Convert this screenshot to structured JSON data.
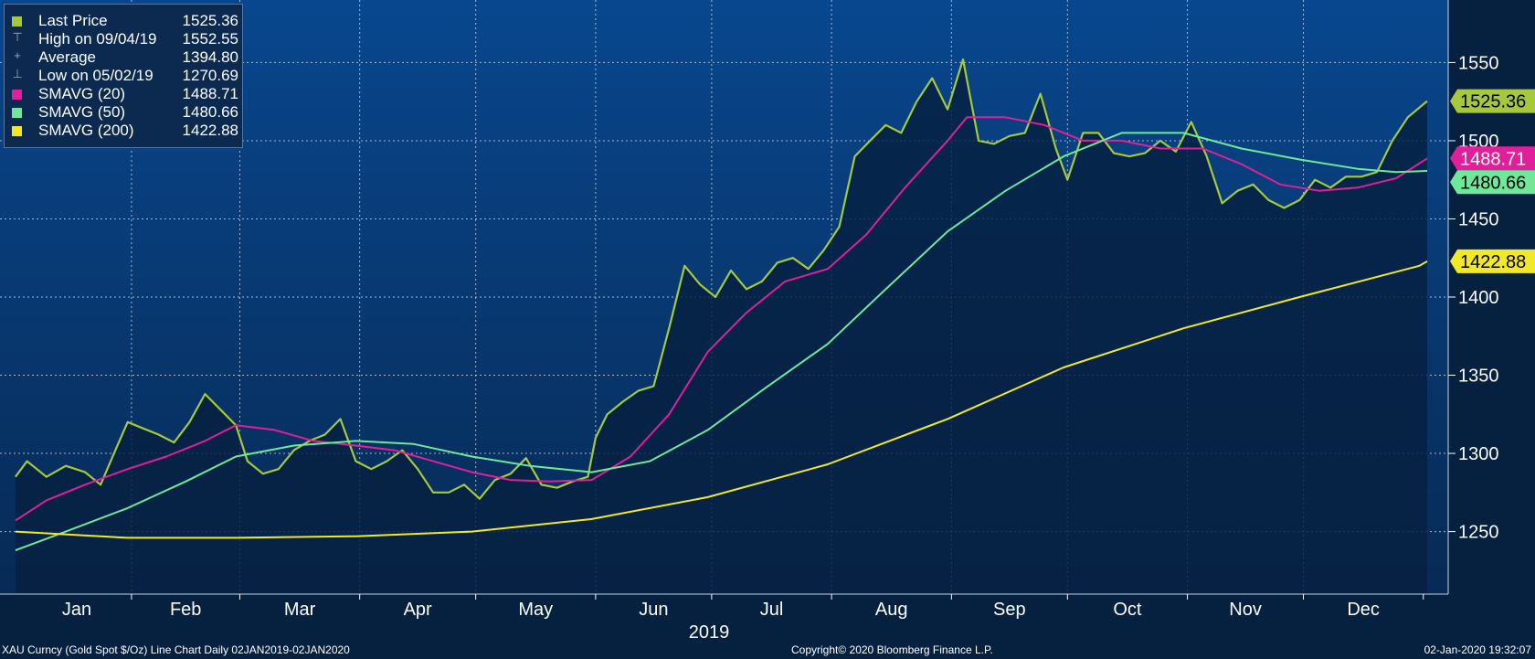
{
  "chart_data": {
    "type": "line",
    "title": "",
    "xlabel": "2019",
    "ylabel": "",
    "x_months": [
      "Jan",
      "Feb",
      "Mar",
      "Apr",
      "May",
      "Jun",
      "Jul",
      "Aug",
      "Sep",
      "Oct",
      "Nov",
      "Dec"
    ],
    "ylim": [
      1210,
      1590
    ],
    "y_ticks": [
      1250,
      1300,
      1350,
      1400,
      1450,
      1500,
      1550
    ],
    "grid": true,
    "legend_position": "top-left",
    "series": [
      {
        "name": "Last Price",
        "style": "area",
        "color": "#a6c83c",
        "points": [
          [
            "2019-01-02",
            1285
          ],
          [
            "2019-01-05",
            1295
          ],
          [
            "2019-01-10",
            1285
          ],
          [
            "2019-01-15",
            1292
          ],
          [
            "2019-01-20",
            1288
          ],
          [
            "2019-01-24",
            1280
          ],
          [
            "2019-01-28",
            1303
          ],
          [
            "2019-01-31",
            1320
          ],
          [
            "2019-02-04",
            1316
          ],
          [
            "2019-02-08",
            1312
          ],
          [
            "2019-02-12",
            1307
          ],
          [
            "2019-02-16",
            1320
          ],
          [
            "2019-02-20",
            1338
          ],
          [
            "2019-02-24",
            1328
          ],
          [
            "2019-02-28",
            1318
          ],
          [
            "2019-03-03",
            1295
          ],
          [
            "2019-03-07",
            1287
          ],
          [
            "2019-03-11",
            1290
          ],
          [
            "2019-03-15",
            1302
          ],
          [
            "2019-03-19",
            1308
          ],
          [
            "2019-03-23",
            1312
          ],
          [
            "2019-03-27",
            1322
          ],
          [
            "2019-03-31",
            1295
          ],
          [
            "2019-04-04",
            1290
          ],
          [
            "2019-04-08",
            1295
          ],
          [
            "2019-04-12",
            1302
          ],
          [
            "2019-04-16",
            1290
          ],
          [
            "2019-04-20",
            1275
          ],
          [
            "2019-04-24",
            1275
          ],
          [
            "2019-04-28",
            1280
          ],
          [
            "2019-05-02",
            1271
          ],
          [
            "2019-05-06",
            1283
          ],
          [
            "2019-05-10",
            1287
          ],
          [
            "2019-05-14",
            1297
          ],
          [
            "2019-05-18",
            1280
          ],
          [
            "2019-05-22",
            1278
          ],
          [
            "2019-05-26",
            1282
          ],
          [
            "2019-05-30",
            1285
          ],
          [
            "2019-06-01",
            1310
          ],
          [
            "2019-06-04",
            1325
          ],
          [
            "2019-06-08",
            1333
          ],
          [
            "2019-06-12",
            1340
          ],
          [
            "2019-06-16",
            1343
          ],
          [
            "2019-06-20",
            1380
          ],
          [
            "2019-06-24",
            1420
          ],
          [
            "2019-06-28",
            1408
          ],
          [
            "2019-07-02",
            1400
          ],
          [
            "2019-07-06",
            1417
          ],
          [
            "2019-07-10",
            1405
          ],
          [
            "2019-07-14",
            1410
          ],
          [
            "2019-07-18",
            1422
          ],
          [
            "2019-07-22",
            1425
          ],
          [
            "2019-07-26",
            1418
          ],
          [
            "2019-07-30",
            1430
          ],
          [
            "2019-08-03",
            1445
          ],
          [
            "2019-08-07",
            1490
          ],
          [
            "2019-08-11",
            1500
          ],
          [
            "2019-08-15",
            1510
          ],
          [
            "2019-08-19",
            1505
          ],
          [
            "2019-08-23",
            1525
          ],
          [
            "2019-08-27",
            1540
          ],
          [
            "2019-08-31",
            1520
          ],
          [
            "2019-09-04",
            1552
          ],
          [
            "2019-09-08",
            1500
          ],
          [
            "2019-09-12",
            1498
          ],
          [
            "2019-09-16",
            1503
          ],
          [
            "2019-09-20",
            1505
          ],
          [
            "2019-09-24",
            1530
          ],
          [
            "2019-09-28",
            1495
          ],
          [
            "2019-10-01",
            1475
          ],
          [
            "2019-10-05",
            1505
          ],
          [
            "2019-10-09",
            1505
          ],
          [
            "2019-10-13",
            1492
          ],
          [
            "2019-10-17",
            1490
          ],
          [
            "2019-10-21",
            1492
          ],
          [
            "2019-10-25",
            1500
          ],
          [
            "2019-10-29",
            1493
          ],
          [
            "2019-11-02",
            1512
          ],
          [
            "2019-11-06",
            1490
          ],
          [
            "2019-11-10",
            1460
          ],
          [
            "2019-11-14",
            1468
          ],
          [
            "2019-11-18",
            1472
          ],
          [
            "2019-11-22",
            1462
          ],
          [
            "2019-11-26",
            1457
          ],
          [
            "2019-11-30",
            1462
          ],
          [
            "2019-12-04",
            1475
          ],
          [
            "2019-12-08",
            1470
          ],
          [
            "2019-12-12",
            1477
          ],
          [
            "2019-12-16",
            1477
          ],
          [
            "2019-12-20",
            1480
          ],
          [
            "2019-12-24",
            1500
          ],
          [
            "2019-12-28",
            1515
          ],
          [
            "2020-01-02",
            1525.36
          ]
        ]
      },
      {
        "name": "SMAVG (20)",
        "style": "line",
        "color": "#e0209a",
        "points": [
          [
            "2019-01-02",
            1257
          ],
          [
            "2019-01-10",
            1270
          ],
          [
            "2019-01-20",
            1280
          ],
          [
            "2019-01-31",
            1290
          ],
          [
            "2019-02-10",
            1298
          ],
          [
            "2019-02-20",
            1308
          ],
          [
            "2019-02-28",
            1318
          ],
          [
            "2019-03-10",
            1315
          ],
          [
            "2019-03-20",
            1308
          ],
          [
            "2019-03-31",
            1305
          ],
          [
            "2019-04-10",
            1302
          ],
          [
            "2019-04-20",
            1295
          ],
          [
            "2019-04-30",
            1288
          ],
          [
            "2019-05-10",
            1283
          ],
          [
            "2019-05-20",
            1282
          ],
          [
            "2019-05-31",
            1283
          ],
          [
            "2019-06-10",
            1298
          ],
          [
            "2019-06-20",
            1325
          ],
          [
            "2019-06-30",
            1365
          ],
          [
            "2019-07-10",
            1390
          ],
          [
            "2019-07-20",
            1410
          ],
          [
            "2019-07-31",
            1418
          ],
          [
            "2019-08-10",
            1440
          ],
          [
            "2019-08-20",
            1470
          ],
          [
            "2019-08-31",
            1500
          ],
          [
            "2019-09-05",
            1515
          ],
          [
            "2019-09-15",
            1515
          ],
          [
            "2019-09-25",
            1510
          ],
          [
            "2019-10-05",
            1500
          ],
          [
            "2019-10-15",
            1500
          ],
          [
            "2019-10-25",
            1495
          ],
          [
            "2019-11-05",
            1495
          ],
          [
            "2019-11-15",
            1485
          ],
          [
            "2019-11-25",
            1472
          ],
          [
            "2019-12-05",
            1468
          ],
          [
            "2019-12-15",
            1470
          ],
          [
            "2019-12-25",
            1476
          ],
          [
            "2020-01-02",
            1488.71
          ]
        ]
      },
      {
        "name": "SMAVG (50)",
        "style": "line",
        "color": "#6fe89a",
        "points": [
          [
            "2019-01-02",
            1238
          ],
          [
            "2019-01-15",
            1250
          ],
          [
            "2019-01-31",
            1265
          ],
          [
            "2019-02-15",
            1282
          ],
          [
            "2019-02-28",
            1298
          ],
          [
            "2019-03-15",
            1305
          ],
          [
            "2019-03-31",
            1308
          ],
          [
            "2019-04-15",
            1306
          ],
          [
            "2019-04-30",
            1298
          ],
          [
            "2019-05-15",
            1292
          ],
          [
            "2019-05-31",
            1288
          ],
          [
            "2019-06-15",
            1295
          ],
          [
            "2019-06-30",
            1315
          ],
          [
            "2019-07-15",
            1342
          ],
          [
            "2019-07-31",
            1370
          ],
          [
            "2019-08-15",
            1405
          ],
          [
            "2019-08-31",
            1442
          ],
          [
            "2019-09-15",
            1468
          ],
          [
            "2019-09-30",
            1490
          ],
          [
            "2019-10-15",
            1505
          ],
          [
            "2019-10-31",
            1505
          ],
          [
            "2019-11-15",
            1495
          ],
          [
            "2019-11-30",
            1488
          ],
          [
            "2019-12-15",
            1482
          ],
          [
            "2019-12-25",
            1480
          ],
          [
            "2020-01-02",
            1480.66
          ]
        ]
      },
      {
        "name": "SMAVG (200)",
        "style": "line",
        "color": "#f2e82a",
        "points": [
          [
            "2019-01-02",
            1250
          ],
          [
            "2019-01-31",
            1246
          ],
          [
            "2019-02-28",
            1246
          ],
          [
            "2019-03-31",
            1247
          ],
          [
            "2019-04-30",
            1250
          ],
          [
            "2019-05-31",
            1258
          ],
          [
            "2019-06-30",
            1272
          ],
          [
            "2019-07-31",
            1293
          ],
          [
            "2019-08-31",
            1322
          ],
          [
            "2019-09-30",
            1355
          ],
          [
            "2019-10-31",
            1380
          ],
          [
            "2019-11-30",
            1400
          ],
          [
            "2019-12-31",
            1420
          ],
          [
            "2020-01-02",
            1422.88
          ]
        ]
      }
    ],
    "axis_tags": [
      {
        "label": "1525.36",
        "value": 1525.36,
        "bg": "#a6c83c",
        "fg": "#000000"
      },
      {
        "label": "1488.71",
        "value": 1488.71,
        "bg": "#e0209a",
        "fg": "#ffffff"
      },
      {
        "label": "1480.66",
        "value": 1480.66,
        "bg": "#6fe89a",
        "fg": "#000000"
      },
      {
        "label": "1422.88",
        "value": 1422.88,
        "bg": "#f2e82a",
        "fg": "#000000"
      }
    ]
  },
  "legend": {
    "rows": [
      {
        "label": "Last Price",
        "value": "1525.36",
        "color": "#a6c83c",
        "marker": "square"
      },
      {
        "label": "High on 09/04/19",
        "value": "1552.55",
        "color": "#9aa8bc",
        "marker": "⊤"
      },
      {
        "label": "Average",
        "value": "1394.80",
        "color": "#9aa8bc",
        "marker": "+"
      },
      {
        "label": "Low on 05/02/19",
        "value": "1270.69",
        "color": "#9aa8bc",
        "marker": "⊥"
      },
      {
        "label": "SMAVG (20)",
        "value": "1488.71",
        "color": "#e0209a",
        "marker": "square"
      },
      {
        "label": "SMAVG (50)",
        "value": "1480.66",
        "color": "#6fe89a",
        "marker": "square"
      },
      {
        "label": "SMAVG (200)",
        "value": "1422.88",
        "color": "#f2e82a",
        "marker": "square"
      }
    ]
  },
  "footer": {
    "left": "XAU Curncy (Gold Spot  $/Oz) Line Chart  Daily 02JAN2019-02JAN2020",
    "center": "Copyright© 2020 Bloomberg Finance L.P.",
    "right": "02-Jan-2020 19:32:07"
  }
}
